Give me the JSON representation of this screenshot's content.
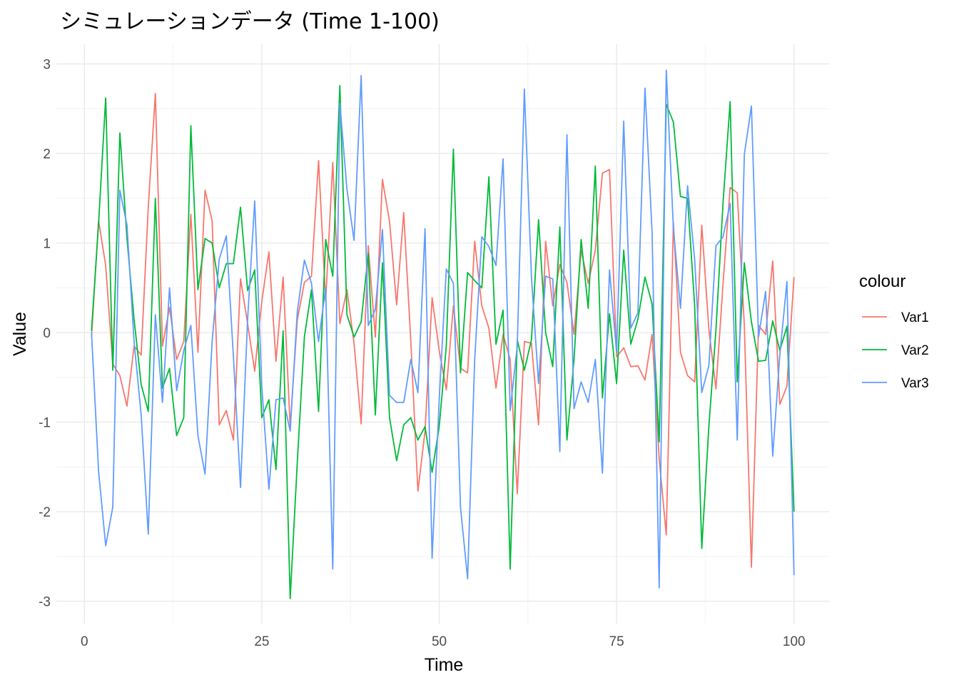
{
  "chart_data": {
    "type": "line",
    "title": "シミュレーションデータ (Time 1-100)",
    "xlabel": "Time",
    "ylabel": "Value",
    "xlim": [
      -3.95,
      104.95
    ],
    "ylim": [
      -3.25,
      3.22
    ],
    "x_ticks": [
      0,
      25,
      50,
      75,
      100
    ],
    "y_ticks": [
      -3,
      -2,
      -1,
      0,
      1,
      2,
      3
    ],
    "grid": true,
    "legend": {
      "title": "colour",
      "position": "right"
    },
    "x": [
      1,
      2,
      3,
      4,
      5,
      6,
      7,
      8,
      9,
      10,
      11,
      12,
      13,
      14,
      15,
      16,
      17,
      18,
      19,
      20,
      21,
      22,
      23,
      24,
      25,
      26,
      27,
      28,
      29,
      30,
      31,
      32,
      33,
      34,
      35,
      36,
      37,
      38,
      39,
      40,
      41,
      42,
      43,
      44,
      45,
      46,
      47,
      48,
      49,
      50,
      51,
      52,
      53,
      54,
      55,
      56,
      57,
      58,
      59,
      60,
      61,
      62,
      63,
      64,
      65,
      66,
      67,
      68,
      69,
      70,
      71,
      72,
      73,
      74,
      75,
      76,
      77,
      78,
      79,
      80,
      81,
      82,
      83,
      84,
      85,
      86,
      87,
      88,
      89,
      90,
      91,
      92,
      93,
      94,
      95,
      96,
      97,
      98,
      99,
      100
    ],
    "series": [
      {
        "name": "Var1",
        "color": "#F8766D",
        "values": [
          -0.05,
          1.25,
          0.75,
          -0.35,
          -0.48,
          -0.82,
          -0.15,
          -0.25,
          1.4,
          2.67,
          -0.15,
          0.28,
          -0.3,
          -0.1,
          1.32,
          -0.22,
          1.59,
          1.25,
          -1.03,
          -0.87,
          -1.2,
          0.6,
          0.1,
          -0.43,
          0.35,
          0.9,
          -0.32,
          0.62,
          -1.05,
          0.14,
          0.56,
          0.63,
          1.92,
          0.35,
          1.9,
          0.1,
          0.48,
          -0.12,
          -1.02,
          0.97,
          -0.05,
          1.71,
          1.24,
          0.31,
          1.34,
          -0.1,
          -1.77,
          -1.1,
          0.39,
          -0.2,
          -0.64,
          0.3,
          -0.4,
          -0.45,
          1.02,
          0.3,
          0.05,
          -0.62,
          -0.02,
          -0.3,
          -1.8,
          -0.1,
          -0.12,
          -1.03,
          1.02,
          0.3,
          0.76,
          0.56,
          -0.02,
          0.92,
          0.55,
          0.92,
          1.78,
          1.82,
          -0.27,
          -0.17,
          -0.38,
          -0.37,
          -0.53,
          -0.02,
          -1.41,
          -2.26,
          1.23,
          -0.22,
          -0.48,
          -0.55,
          1.2,
          0.04,
          -0.63,
          0.55,
          1.62,
          1.56,
          0.08,
          -2.62,
          0.08,
          -0.02,
          0.8,
          -0.8,
          -0.6,
          0.62
        ]
      },
      {
        "name": "Var2",
        "color": "#00BA38",
        "values": [
          0.02,
          1.22,
          2.62,
          -0.42,
          2.23,
          1.05,
          0.15,
          -0.58,
          -0.88,
          1.5,
          -0.62,
          -0.4,
          -1.15,
          -0.95,
          2.31,
          0.48,
          1.05,
          1.0,
          0.5,
          0.77,
          0.77,
          1.4,
          0.47,
          0.7,
          -0.95,
          -0.75,
          -1.53,
          0.02,
          -2.97,
          -1.45,
          -0.05,
          0.48,
          -0.88,
          1.04,
          0.63,
          2.76,
          0.2,
          -0.05,
          0.12,
          0.88,
          -0.92,
          0.78,
          -0.95,
          -1.43,
          -1.03,
          -0.95,
          -1.2,
          -1.05,
          -1.56,
          -1.05,
          -0.15,
          2.05,
          -0.45,
          0.67,
          0.58,
          0.5,
          1.74,
          -0.13,
          0.25,
          -2.64,
          -0.08,
          -0.42,
          -0.08,
          1.26,
          0.0,
          -0.38,
          1.18,
          -1.2,
          -0.3,
          1.04,
          0.27,
          1.86,
          -0.73,
          0.21,
          -0.57,
          0.92,
          -0.13,
          0.15,
          0.62,
          0.32,
          -1.22,
          2.55,
          2.35,
          1.52,
          1.5,
          0.3,
          -2.41,
          -1.05,
          0.03,
          1.45,
          2.58,
          -0.55,
          0.78,
          0.12,
          -0.32,
          -0.31,
          0.13,
          -0.2,
          0.07,
          -2.0
        ]
      },
      {
        "name": "Var3",
        "color": "#619CFF",
        "values": [
          0.0,
          -1.55,
          -2.38,
          -1.95,
          1.59,
          1.2,
          -0.1,
          -0.92,
          -2.25,
          0.2,
          -0.78,
          0.5,
          -0.65,
          -0.2,
          0.08,
          -1.15,
          -1.58,
          -0.1,
          0.82,
          1.08,
          -0.27,
          -1.73,
          0.15,
          1.47,
          -0.6,
          -1.75,
          -0.75,
          -0.73,
          -1.1,
          0.23,
          0.81,
          0.55,
          -0.1,
          0.5,
          -2.64,
          2.56,
          1.6,
          1.03,
          2.87,
          0.08,
          0.26,
          1.15,
          -0.7,
          -0.78,
          -0.78,
          -0.3,
          -0.67,
          1.16,
          -2.52,
          -0.75,
          0.71,
          0.55,
          -1.95,
          -2.75,
          -0.3,
          1.07,
          0.96,
          0.75,
          1.94,
          -0.87,
          -0.15,
          2.72,
          0.62,
          -0.57,
          0.63,
          0.6,
          -1.33,
          2.21,
          -0.85,
          -0.55,
          -0.78,
          -0.3,
          -1.57,
          0.7,
          -0.22,
          2.36,
          0.05,
          0.22,
          2.73,
          1.12,
          -2.85,
          2.93,
          1.17,
          0.27,
          1.64,
          0.82,
          -0.67,
          -0.37,
          0.97,
          1.07,
          1.44,
          -1.2,
          1.99,
          2.53,
          -0.05,
          0.46,
          -1.38,
          -0.25,
          0.57,
          -2.71
        ]
      }
    ]
  }
}
